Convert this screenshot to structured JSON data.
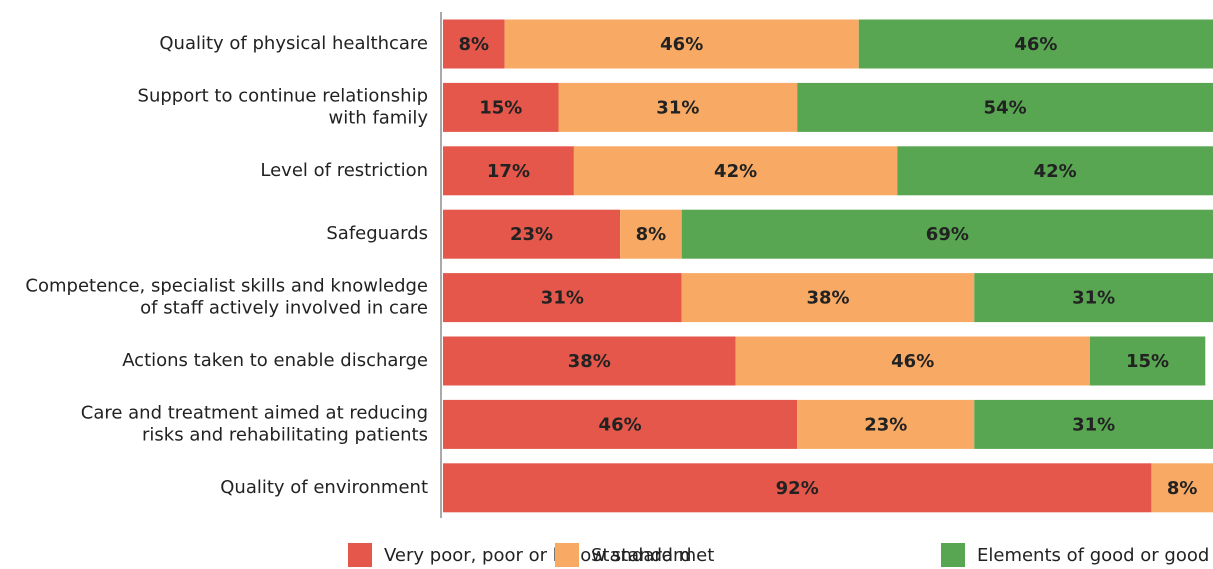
{
  "chart_data": {
    "type": "stacked_barh",
    "categories": [
      "Quality of physical healthcare",
      "Support to continue relationship\nwith family",
      "Level of restriction",
      "Safeguards",
      "Competence, specialist skills and knowledge\nof staff actively involved in care",
      "Actions taken to enable discharge",
      "Care and treatment aimed at reducing\nrisks and rehabilitating patients",
      "Quality of environment"
    ],
    "series": [
      {
        "name": "Very poor, poor or below standard",
        "color": "#e4574a",
        "label_color": "#ffffff",
        "values": [
          8,
          15,
          17,
          23,
          31,
          38,
          46,
          92
        ],
        "value_labels": [
          "8%",
          "15%",
          "17%",
          "23%",
          "31%",
          "38%",
          "46%",
          "92%"
        ]
      },
      {
        "name": "Standard met",
        "color": "#f8aa64",
        "label_color": "#222222",
        "values": [
          46,
          31,
          42,
          8,
          38,
          46,
          23,
          8
        ],
        "value_labels": [
          "46%",
          "31%",
          "42%",
          "8%",
          "38%",
          "46%",
          "23%",
          "8%"
        ]
      },
      {
        "name": "Elements of good or good",
        "color": "#58a651",
        "label_color": "#ffffff",
        "values": [
          46,
          54,
          42,
          69,
          31,
          15,
          31,
          0
        ],
        "value_labels": [
          "46%",
          "54%",
          "42%",
          "69%",
          "31%",
          "15%",
          "31%",
          null
        ]
      }
    ],
    "xlim": [
      0,
      100
    ]
  }
}
